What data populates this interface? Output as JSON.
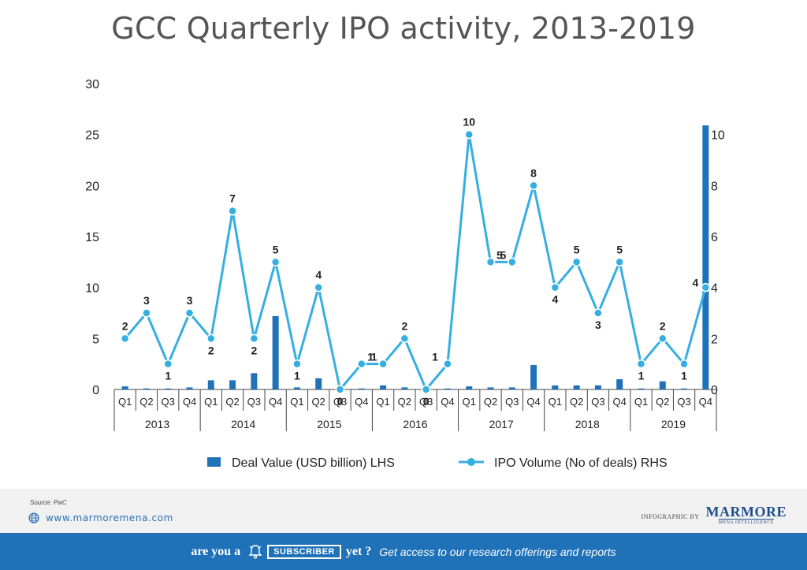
{
  "title": "GCC Quarterly IPO activity, 2013-2019",
  "chart_data": {
    "type": "bar+line",
    "title": "GCC Quarterly IPO activity, 2013-2019",
    "years": [
      "2013",
      "2014",
      "2015",
      "2016",
      "2017",
      "2018",
      "2019"
    ],
    "quarters": [
      "Q1",
      "Q2",
      "Q3",
      "Q4"
    ],
    "categories": [
      "Q1",
      "Q2",
      "Q3",
      "Q4",
      "Q1",
      "Q2",
      "Q3",
      "Q4",
      "Q1",
      "Q2",
      "Q3",
      "Q4",
      "Q1",
      "Q2",
      "Q3",
      "Q4",
      "Q1",
      "Q2",
      "Q3",
      "Q4",
      "Q1",
      "Q2",
      "Q3",
      "Q4",
      "Q1",
      "Q2",
      "Q3",
      "Q4"
    ],
    "left_axis": {
      "ylim": [
        0,
        30
      ],
      "ticks": [
        "0",
        "5",
        "10",
        "15",
        "20",
        "25",
        "30"
      ]
    },
    "right_axis": {
      "ylim": [
        0,
        12
      ],
      "ticks": [
        "0",
        "2",
        "4",
        "6",
        "8",
        "10"
      ]
    },
    "series": [
      {
        "name": "Deal Value (USD billion) LHS",
        "type": "bar",
        "axis": "left",
        "color": "#1f72b8",
        "values": [
          0.3,
          0.1,
          0.1,
          0.2,
          0.9,
          0.9,
          1.6,
          7.2,
          0.2,
          1.1,
          0.05,
          0.1,
          0.4,
          0.2,
          0.05,
          0.1,
          0.3,
          0.2,
          0.2,
          2.4,
          0.4,
          0.4,
          0.4,
          1.0,
          0.1,
          0.8,
          0.1,
          25.9
        ]
      },
      {
        "name": "IPO Volume (No of deals) RHS",
        "type": "line",
        "axis": "right",
        "color": "#35aee2",
        "values": [
          2,
          3,
          1,
          3,
          2,
          7,
          2,
          5,
          1,
          4,
          0,
          1,
          1,
          2,
          0,
          1,
          10,
          5,
          5,
          8,
          4,
          5,
          3,
          5,
          1,
          2,
          1,
          4
        ],
        "labels": [
          "2",
          "3",
          "1",
          "3",
          "2",
          "7",
          "2",
          "5",
          "1",
          "4",
          "0",
          "1",
          "1",
          "2",
          "0",
          "1",
          "10",
          "5",
          "5",
          "8",
          "4",
          "5",
          "3",
          "5",
          "1",
          "2",
          "1",
          "4"
        ]
      }
    ],
    "grid": false,
    "legend_position": "bottom"
  },
  "footer": {
    "source": "Source: PwC",
    "website": "www.marmoremena.com",
    "infographic_by": "INFOGRAPHIC BY",
    "brand_name": "MARMORE",
    "brand_tagline": "MENA INTELLIGENCE",
    "brand_color": "#1f4e8c"
  },
  "banner": {
    "text_a": "are you a",
    "button": "SUBSCRIBER",
    "text_b": "yet ?",
    "text_c": "Get access to our research offerings and reports",
    "bg_color": "#1f72b8"
  }
}
